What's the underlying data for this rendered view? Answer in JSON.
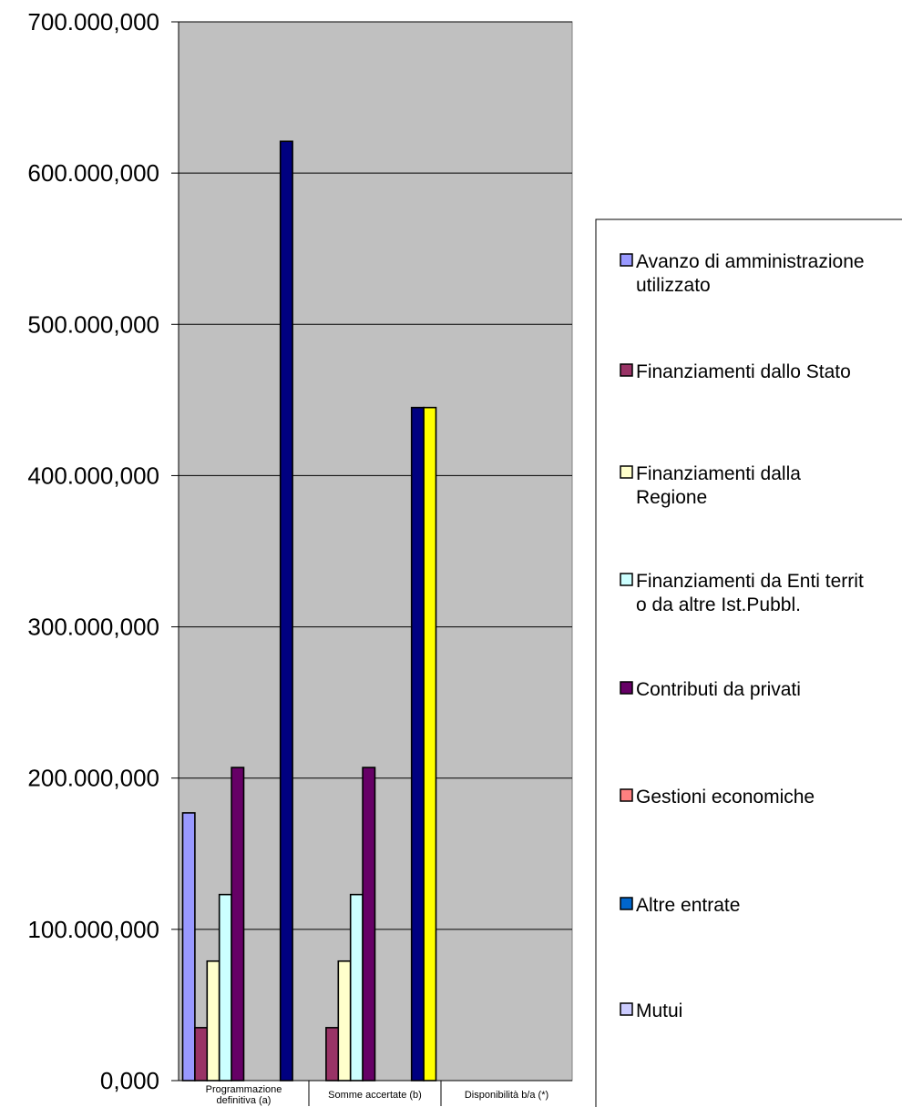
{
  "chart_data": {
    "type": "bar",
    "title": "",
    "xlabel": "",
    "ylabel": "",
    "ylim": [
      0,
      700000000
    ],
    "ytick_labels": [
      "0,000",
      "100.000,000",
      "200.000,000",
      "300.000,000",
      "400.000,000",
      "500.000,000",
      "600.000,000",
      "700.000,000"
    ],
    "grid": true,
    "legend_position": "right",
    "categories": [
      [
        "Programmazione",
        "definitiva (a)"
      ],
      [
        "Somme accertate (b)"
      ],
      [
        "Disponibilità b/a (*)"
      ]
    ],
    "series": [
      {
        "name": "Avanzo di amministrazione utilizzato",
        "legend_lines": [
          "Avanzo di amministrazione",
          "utilizzato"
        ],
        "color": "#9999ff",
        "values": [
          177000000,
          0,
          0
        ]
      },
      {
        "name": "Finanziamenti dallo Stato",
        "legend_lines": [
          "Finanziamenti dallo Stato"
        ],
        "color": "#993366",
        "values": [
          35000000,
          35000000,
          0
        ]
      },
      {
        "name": "Finanziamenti dalla Regione",
        "legend_lines": [
          "Finanziamenti dalla",
          "Regione"
        ],
        "color": "#ffffcc",
        "values": [
          79000000,
          79000000,
          0
        ]
      },
      {
        "name": "Finanziamenti da Enti territ o da altre Ist.Pubbl.",
        "legend_lines": [
          "Finanziamenti da Enti territ",
          "o da altre Ist.Pubbl."
        ],
        "color": "#ccffff",
        "values": [
          123000000,
          123000000,
          0
        ]
      },
      {
        "name": "Contributi da privati",
        "legend_lines": [
          "Contributi da privati"
        ],
        "color": "#660066",
        "values": [
          207000000,
          207000000,
          0
        ]
      },
      {
        "name": "Gestioni economiche",
        "legend_lines": [
          "Gestioni economiche"
        ],
        "color": "#ff8080",
        "values": [
          0,
          0,
          0
        ]
      },
      {
        "name": "Altre entrate",
        "legend_lines": [
          "Altre entrate"
        ],
        "color": "#0066cc",
        "values": [
          0,
          0,
          0
        ]
      },
      {
        "name": "Mutui",
        "legend_lines": [
          "Mutui"
        ],
        "color": "#ccccff",
        "values": [
          0,
          0,
          0
        ]
      },
      {
        "name": "",
        "legend_lines": [],
        "color": "#000080",
        "values": [
          621000000,
          445000000,
          0
        ]
      },
      {
        "name": "",
        "legend_lines": [],
        "color": "#ffff00",
        "values": [
          0,
          445000000,
          0
        ]
      }
    ],
    "colors": {
      "plot_background": "#c0c0c0",
      "gridline": "#000000",
      "page_background": "#ffffff"
    }
  }
}
